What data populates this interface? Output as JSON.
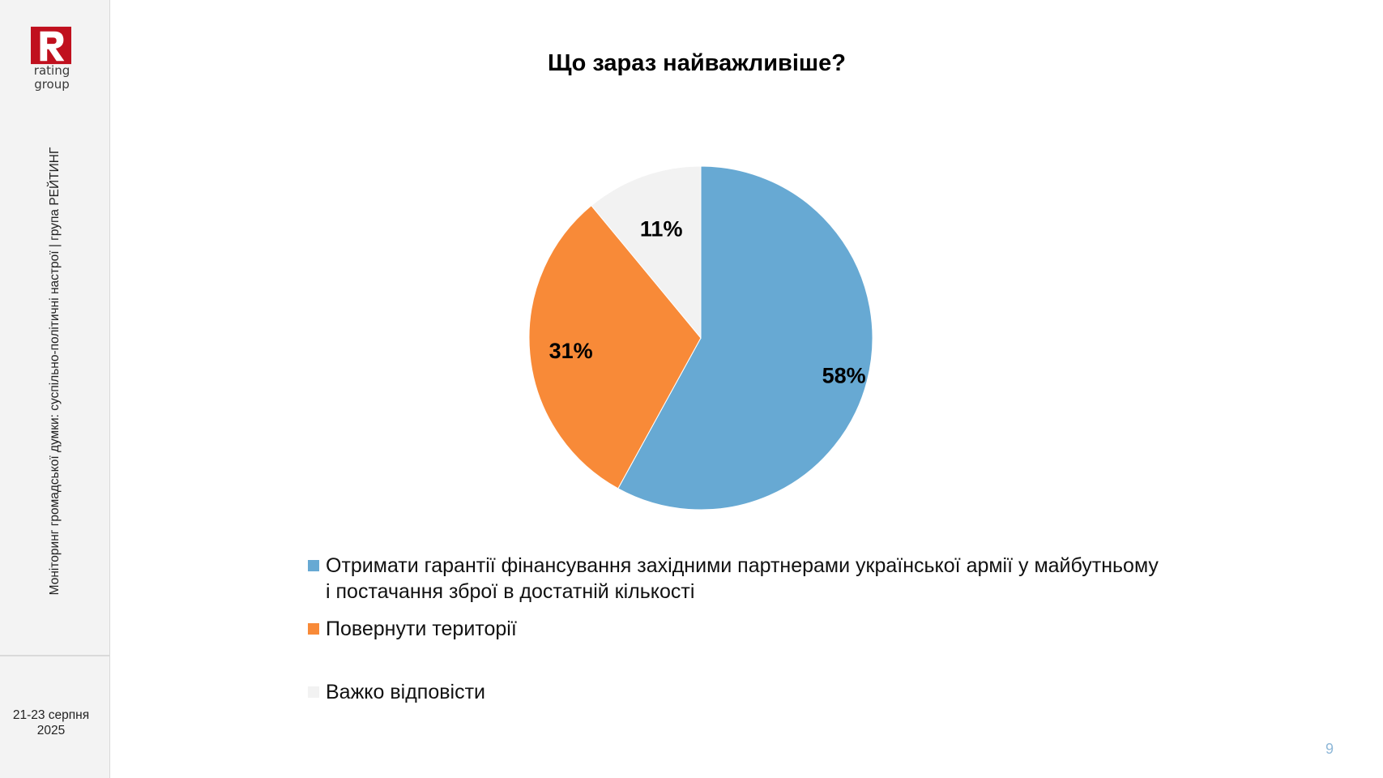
{
  "sidebar": {
    "logo_letter": "R",
    "logo_text_line1": "rating",
    "logo_text_line2": "group",
    "vertical_caption": "Моніторинг громадської думки: суспільно-політичні настрої | група РЕЙТИНГ",
    "date_line1": "21-23 серпня",
    "date_line2": "2025"
  },
  "page_number": "9",
  "colors": {
    "brand_red": "#c0101e",
    "series_blue": "#67a9d3",
    "series_orange": "#f88a38",
    "series_lightgray": "#f2f2f2"
  },
  "chart_data": {
    "type": "pie",
    "title": "Що зараз найважливіше?",
    "slices": [
      {
        "label": "Отримати гарантії фінансування західними партнерами української армії у майбутньому і постачання зброї в достатній кількості",
        "value": 58,
        "display": "58%",
        "color": "#67a9d3"
      },
      {
        "label": "Повернути території",
        "value": 31,
        "display": "31%",
        "color": "#f88a38"
      },
      {
        "label": "Важко відповісти",
        "value": 11,
        "display": "11%",
        "color": "#f2f2f2"
      }
    ],
    "legend_position": "bottom"
  }
}
